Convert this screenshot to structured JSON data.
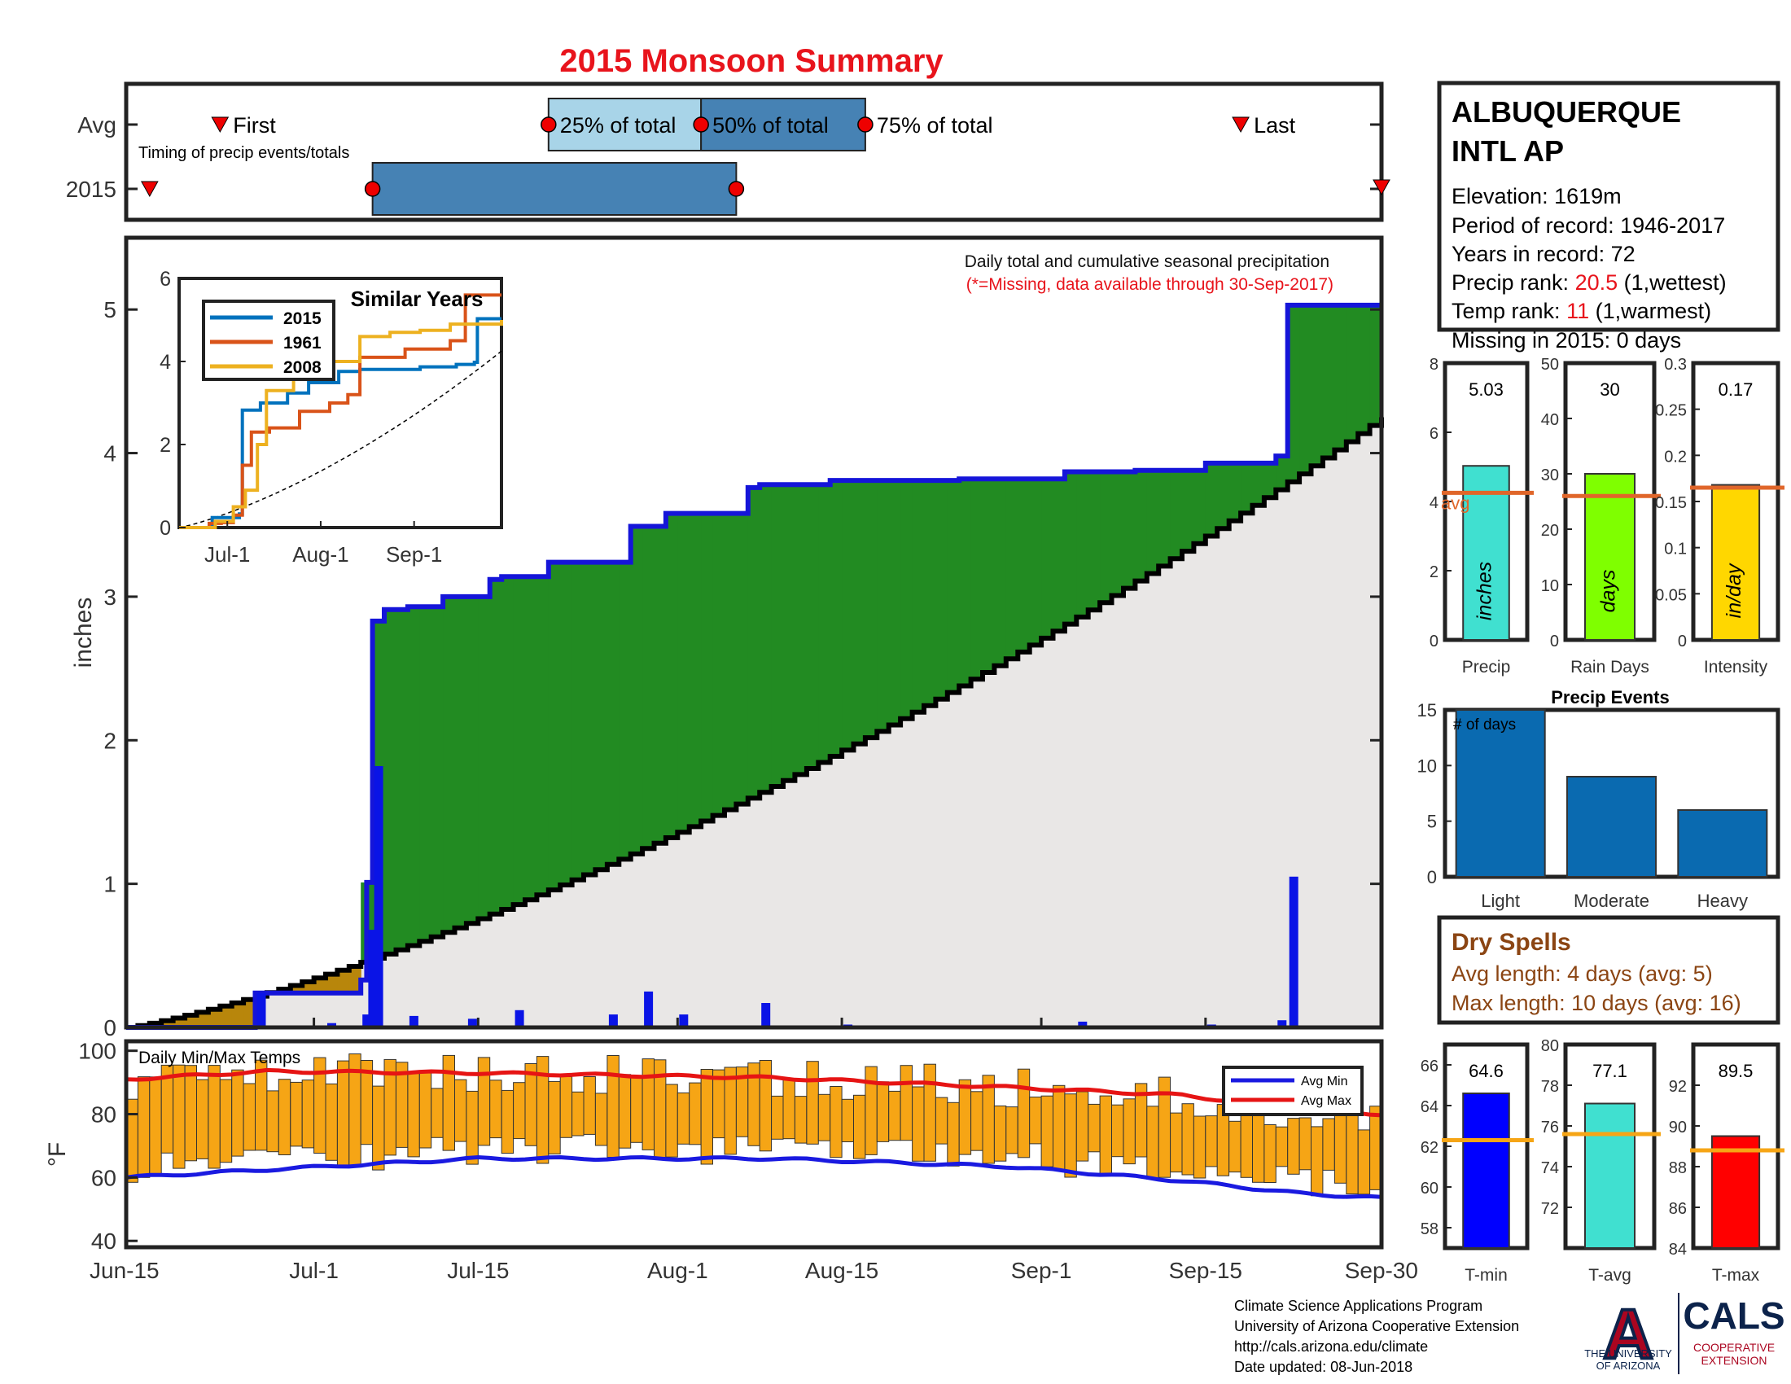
{
  "title": "2015 Monsoon Summary",
  "colors": {
    "title": "#e8141c",
    "axis": "#222222",
    "cum_avg_fill": "#e9e7e6",
    "surplus_green": "#228b22",
    "deficit_brown": "#b8860b",
    "cum_2015_line": "#1515d9",
    "daily_bar": "#0a14e6",
    "box_light": "#a8d4e8",
    "box_dark": "#4682b4",
    "avg_line": "#e0662a",
    "temp_bar": "#f6a515",
    "avg_min": "#1a1ae0",
    "avg_max": "#e61414",
    "dry_spell_text": "#8b4513",
    "event_bar": "#0a6ab0",
    "ua_red": "#cc0033",
    "ua_blue": "#0c234b"
  },
  "station": {
    "name_line1": "ALBUQUERQUE",
    "name_line2": "INTL AP",
    "elevation": "Elevation: 1619m",
    "period": "Period of record: 1946-2017",
    "years": "Years in record: 72",
    "precip_rank_label": "Precip rank: ",
    "precip_rank_value": "20.5",
    "precip_rank_note": " (1,wettest)",
    "temp_rank_label": "Temp rank: ",
    "temp_rank_value": "11",
    "temp_rank_note": " (1,warmest)",
    "missing": "Missing in 2015: 0 days"
  },
  "chart_data": [
    {
      "type": "timeline",
      "name": "Timing of precip events/totals",
      "note": "Timing of precip events/totals",
      "rows": [
        "Avg",
        "2015"
      ],
      "avg": {
        "first": "Jun-23",
        "p25": "Jul-21",
        "p50": "Aug-3",
        "p75": "Aug-17",
        "last": "Sep-18"
      },
      "y2015": {
        "first": "Jun-17",
        "p25": "Jul-6",
        "p50": "Aug-6",
        "p75": "Aug-6",
        "last": "Sep-30"
      },
      "labels": {
        "first": "First",
        "p25": "25% of total",
        "p50": "50% of total",
        "p75": "75% of total",
        "last": "Last"
      }
    },
    {
      "type": "area",
      "name": "Daily total and cumulative seasonal precipitation",
      "header": "Daily total and cumulative seasonal precipitation",
      "missing_note": "(*=Missing, data available through 30-Sep-2017)",
      "ylabel": "inches",
      "ylim": [
        0,
        5.5
      ],
      "yticks": [
        0,
        1,
        2,
        3,
        4,
        5
      ],
      "xticks": [
        "Jun-15",
        "Jul-1",
        "Jul-15",
        "Aug-1",
        "Aug-15",
        "Sep-1",
        "Sep-15",
        "Sep-30"
      ],
      "xtick_days": [
        0,
        16,
        30,
        47,
        61,
        78,
        92,
        107
      ],
      "cum_avg_endpoints": [
        [
          0,
          0
        ],
        [
          107,
          4.25
        ]
      ],
      "cum_2015": [
        [
          0,
          0
        ],
        [
          11,
          0
        ],
        [
          11,
          0.24
        ],
        [
          20,
          0.24
        ],
        [
          20,
          0.33
        ],
        [
          20.5,
          0.33
        ],
        [
          20.5,
          1.01
        ],
        [
          21,
          1.01
        ],
        [
          21,
          2.83
        ],
        [
          22,
          2.83
        ],
        [
          22,
          2.91
        ],
        [
          24,
          2.91
        ],
        [
          24,
          2.93
        ],
        [
          27,
          2.93
        ],
        [
          27,
          3.0
        ],
        [
          31,
          3.0
        ],
        [
          31,
          3.12
        ],
        [
          32,
          3.12
        ],
        [
          32,
          3.14
        ],
        [
          36,
          3.14
        ],
        [
          36,
          3.24
        ],
        [
          43,
          3.24
        ],
        [
          43,
          3.49
        ],
        [
          46,
          3.49
        ],
        [
          46,
          3.58
        ],
        [
          53,
          3.58
        ],
        [
          53,
          3.76
        ],
        [
          54,
          3.76
        ],
        [
          54,
          3.78
        ],
        [
          60,
          3.78
        ],
        [
          60,
          3.81
        ],
        [
          71,
          3.81
        ],
        [
          71,
          3.82
        ],
        [
          80,
          3.82
        ],
        [
          80,
          3.87
        ],
        [
          86,
          3.87
        ],
        [
          86,
          3.88
        ],
        [
          92,
          3.88
        ],
        [
          92,
          3.93
        ],
        [
          98,
          3.93
        ],
        [
          98,
          3.98
        ],
        [
          99,
          3.98
        ],
        [
          99,
          5.03
        ],
        [
          107,
          5.03
        ]
      ],
      "daily": [
        [
          11,
          0.24
        ],
        [
          17,
          0.03
        ],
        [
          20,
          0.09
        ],
        [
          20.5,
          0.68
        ],
        [
          21,
          1.82
        ],
        [
          24,
          0.08
        ],
        [
          29,
          0.06
        ],
        [
          33,
          0.12
        ],
        [
          41,
          0.09
        ],
        [
          44,
          0.25
        ],
        [
          47,
          0.09
        ],
        [
          54,
          0.17
        ],
        [
          61,
          0.02
        ],
        [
          72,
          0.01
        ],
        [
          81,
          0.04
        ],
        [
          92,
          0.02
        ],
        [
          98,
          0.05
        ],
        [
          99,
          1.05
        ]
      ],
      "inset": {
        "title": "Similar Years",
        "ylim": [
          0,
          6
        ],
        "yticks": [
          0,
          2,
          4,
          6
        ],
        "xticks": [
          "Jul-1",
          "Aug-1",
          "Sep-1"
        ],
        "xtick_days": [
          16,
          47,
          78
        ],
        "series": [
          {
            "name": "2015",
            "color": "#0072bd",
            "values": [
              [
                0,
                0
              ],
              [
                11,
                0
              ],
              [
                11,
                0.24
              ],
              [
                20,
                0.33
              ],
              [
                21,
                2.83
              ],
              [
                27,
                3.0
              ],
              [
                36,
                3.24
              ],
              [
                43,
                3.49
              ],
              [
                53,
                3.76
              ],
              [
                60,
                3.81
              ],
              [
                80,
                3.87
              ],
              [
                92,
                3.93
              ],
              [
                98,
                3.98
              ],
              [
                99,
                5.03
              ],
              [
                107,
                5.03
              ]
            ]
          },
          {
            "name": "1961",
            "color": "#d95319",
            "values": [
              [
                0,
                0
              ],
              [
                10,
                0.1
              ],
              [
                14,
                0.12
              ],
              [
                18,
                0.3
              ],
              [
                21,
                1.5
              ],
              [
                24,
                2.3
              ],
              [
                30,
                2.4
              ],
              [
                40,
                2.8
              ],
              [
                50,
                3.0
              ],
              [
                56,
                3.2
              ],
              [
                60,
                4.1
              ],
              [
                75,
                4.3
              ],
              [
                90,
                4.5
              ],
              [
                95,
                5.6
              ],
              [
                107,
                5.6
              ]
            ]
          },
          {
            "name": "2008",
            "color": "#edb120",
            "values": [
              [
                0,
                0
              ],
              [
                12,
                0.15
              ],
              [
                18,
                0.5
              ],
              [
                22,
                0.9
              ],
              [
                26,
                2.0
              ],
              [
                29,
                3.3
              ],
              [
                38,
                3.6
              ],
              [
                50,
                4.0
              ],
              [
                60,
                4.6
              ],
              [
                70,
                4.7
              ],
              [
                80,
                4.75
              ],
              [
                90,
                4.9
              ],
              [
                107,
                5.0
              ]
            ]
          }
        ]
      }
    },
    {
      "type": "bar",
      "name": "Precip",
      "value_label": "5.03",
      "bar_label": "inches",
      "xlabel": "Precip",
      "ylim": [
        0,
        8
      ],
      "yticks": [
        0,
        2,
        4,
        6,
        8
      ],
      "value": 5.03,
      "avg": 4.25,
      "avg_label": "avg",
      "color": "#40e0d0"
    },
    {
      "type": "bar",
      "name": "Rain Days",
      "value_label": "30",
      "bar_label": "days",
      "xlabel": "Rain Days",
      "ylim": [
        0,
        50
      ],
      "yticks": [
        0,
        10,
        20,
        30,
        40,
        50
      ],
      "value": 30,
      "avg": 26,
      "color": "#7fff00"
    },
    {
      "type": "bar",
      "name": "Intensity",
      "value_label": "0.17",
      "bar_label": "in/day",
      "xlabel": "Intensity",
      "ylim": [
        0,
        0.3
      ],
      "yticks": [
        0,
        0.05,
        0.1,
        0.15,
        0.2,
        0.25,
        0.3
      ],
      "ytick_labels": [
        "0",
        "0.05",
        "0.1",
        "0.15",
        "0.2",
        "0.25",
        "0.3"
      ],
      "value": 0.168,
      "avg": 0.165,
      "color": "#ffd700"
    },
    {
      "type": "bar",
      "name": "Precip Events",
      "title": "Precip Events",
      "inner_label": "# of days",
      "ylim": [
        0,
        15
      ],
      "yticks": [
        0,
        5,
        10,
        15
      ],
      "categories": [
        "Light",
        "Moderate",
        "Heavy"
      ],
      "values": [
        15,
        9,
        6
      ]
    },
    {
      "type": "bar",
      "name": "Daily Min/Max Temps",
      "title": "Daily Min/Max Temps",
      "ylabel": "°F",
      "ylim": [
        38,
        103
      ],
      "yticks": [
        40,
        60,
        80,
        100
      ],
      "legend": [
        "Avg Min",
        "Avg Max"
      ],
      "avg_min_endpoints": [
        [
          0,
          60
        ],
        [
          12,
          62.5
        ],
        [
          30,
          66
        ],
        [
          55,
          66
        ],
        [
          75,
          63.5
        ],
        [
          90,
          59
        ],
        [
          100,
          55
        ],
        [
          107,
          53.5
        ]
      ],
      "avg_max_endpoints": [
        [
          0,
          91
        ],
        [
          12,
          93.5
        ],
        [
          30,
          93
        ],
        [
          55,
          91.5
        ],
        [
          75,
          88.5
        ],
        [
          90,
          86
        ],
        [
          100,
          81.5
        ],
        [
          107,
          80
        ]
      ],
      "temp_seed": 2015
    },
    {
      "type": "bar",
      "name": "T-min",
      "value_label": "64.6",
      "xlabel": "T-min",
      "ylim": [
        57,
        67
      ],
      "yticks": [
        58,
        60,
        62,
        64,
        66
      ],
      "value": 64.6,
      "avg": 62.3,
      "color": "#0000ff"
    },
    {
      "type": "bar",
      "name": "T-avg",
      "value_label": "77.1",
      "xlabel": "T-avg",
      "ylim": [
        70,
        80
      ],
      "yticks": [
        72,
        74,
        76,
        78,
        80
      ],
      "value": 77.1,
      "avg": 75.6,
      "color": "#40e0d0"
    },
    {
      "type": "bar",
      "name": "T-max",
      "value_label": "89.5",
      "xlabel": "T-max",
      "ylim": [
        84,
        94
      ],
      "yticks": [
        84,
        86,
        88,
        90,
        92
      ],
      "value": 89.5,
      "avg": 88.8,
      "color": "#ff0000"
    }
  ],
  "dry_spells": {
    "title": "Dry Spells",
    "avg_line": "Avg length: 4 days (avg: 5)",
    "max_line": "Max length: 10 days (avg: 16)"
  },
  "footer": {
    "line1": "Climate Science Applications Program",
    "line2": "University of Arizona Cooperative Extension",
    "line3": "http://cals.arizona.edu/climate",
    "line4": " Date updated: 08-Jun-2018"
  },
  "logos": {
    "ua_letter": "A",
    "ua_text1": "THE UNIVERSITY",
    "ua_text2": "OF ARIZONA",
    "cals": "CALS",
    "cals_sub1": "COOPERATIVE",
    "cals_sub2": "EXTENSION"
  }
}
